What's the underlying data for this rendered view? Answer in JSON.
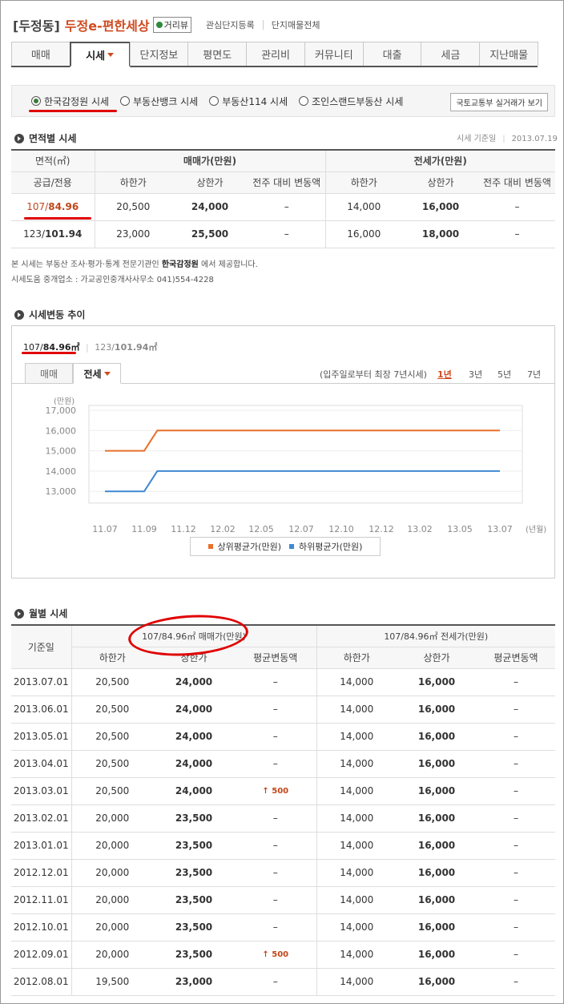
{
  "header": {
    "region": "[두정동]",
    "complex": "두정e-편한세상",
    "roadview": "거리뷰",
    "links": [
      "관심단지등록",
      "단지매물전체"
    ]
  },
  "tabs": [
    {
      "label": "매매"
    },
    {
      "label": "시세",
      "active": true
    },
    {
      "label": "단지정보"
    },
    {
      "label": "평면도"
    },
    {
      "label": "관리비"
    },
    {
      "label": "커뮤니티"
    },
    {
      "label": "대출"
    },
    {
      "label": "세금"
    },
    {
      "label": "지난매물"
    }
  ],
  "sources": [
    "한국감정원 시세",
    "부동산뱅크 시세",
    "부동산114 시세",
    "조인스랜드부동산 시세"
  ],
  "molit_button": "국토교통부 실거래가 보기",
  "area_section": {
    "title": "면적별 시세",
    "ref_label": "시세 기준일",
    "ref_date": "2013.07.19",
    "group_area": "면적(㎡)",
    "group_sale": "매매가(만원)",
    "group_jeonse": "전세가(만원)",
    "sub_area": "공급/전용",
    "sub_low": "하한가",
    "sub_high": "상한가",
    "sub_change": "전주 대비 변동액",
    "rows": [
      {
        "area": "107/",
        "excl": "84.96",
        "s_low": "20,500",
        "s_high": "24,000",
        "s_chg": "–",
        "j_low": "14,000",
        "j_high": "16,000",
        "j_chg": "–"
      },
      {
        "area": "123/",
        "excl": "101.94",
        "s_low": "23,000",
        "s_high": "25,500",
        "s_chg": "–",
        "j_low": "16,000",
        "j_high": "18,000",
        "j_chg": "–"
      }
    ]
  },
  "notice": {
    "pre": "본 시세는 부동산 조사·평가·통계 전문기관인 ",
    "org": "한국감정원",
    "post": " 에서 제공합니다.",
    "agent": "시세도움 중개업소 : 가교공인중개사사무소 041)554-4228"
  },
  "trend": {
    "title": "시세변동 추이",
    "area_on_a": "107/",
    "area_on_b": "84.96㎡",
    "area_off_a": "123/",
    "area_off_b": "101.94㎡",
    "tab_sale": "매매",
    "tab_all": "전세",
    "period_note": "(입주일로부터 최장 7년시세)",
    "periods": [
      "1년",
      "3년",
      "5년",
      "7년"
    ]
  },
  "chart_data": {
    "type": "line",
    "ylabel": "(만원)",
    "xlabel": "(년월)",
    "x_ticks": [
      "11.07",
      "11.09",
      "11.12",
      "12.02",
      "12.05",
      "12.07",
      "12.10",
      "12.12",
      "13.02",
      "13.05",
      "13.07"
    ],
    "y_ticks": [
      "17,000",
      "16,000",
      "15,000",
      "14,000",
      "13,000"
    ],
    "ylim": [
      12500,
      17000
    ],
    "series": [
      {
        "name": "상위평균가(만원)",
        "color": "#e8702a",
        "points": [
          [
            "11.07",
            15000
          ],
          [
            "11.09",
            15000
          ],
          [
            "11.10",
            16000
          ],
          [
            "13.07",
            16000
          ]
        ]
      },
      {
        "name": "하위평균가(만원)",
        "color": "#3f89d0",
        "points": [
          [
            "11.07",
            13000
          ],
          [
            "11.09",
            13000
          ],
          [
            "11.10",
            14000
          ],
          [
            "13.07",
            14000
          ]
        ]
      }
    ]
  },
  "monthly": {
    "title": "월별 시세",
    "col_date": "기준일",
    "group_sale": "107/84.96㎡ 매매가(만원)",
    "group_jeonse": "107/84.96㎡ 전세가(만원)",
    "sub_low": "하한가",
    "sub_high": "상한가",
    "sub_avg": "평균변동액",
    "rows": [
      {
        "date": "2013.07.01",
        "s_low": "20,500",
        "s_high": "24,000",
        "s_avg": "–",
        "j_low": "14,000",
        "j_high": "16,000",
        "j_avg": "–"
      },
      {
        "date": "2013.06.01",
        "s_low": "20,500",
        "s_high": "24,000",
        "s_avg": "–",
        "j_low": "14,000",
        "j_high": "16,000",
        "j_avg": "–"
      },
      {
        "date": "2013.05.01",
        "s_low": "20,500",
        "s_high": "24,000",
        "s_avg": "–",
        "j_low": "14,000",
        "j_high": "16,000",
        "j_avg": "–"
      },
      {
        "date": "2013.04.01",
        "s_low": "20,500",
        "s_high": "24,000",
        "s_avg": "–",
        "j_low": "14,000",
        "j_high": "16,000",
        "j_avg": "–"
      },
      {
        "date": "2013.03.01",
        "s_low": "20,500",
        "s_high": "24,000",
        "s_avg": "↑ 500",
        "j_low": "14,000",
        "j_high": "16,000",
        "j_avg": "–"
      },
      {
        "date": "2013.02.01",
        "s_low": "20,000",
        "s_high": "23,500",
        "s_avg": "–",
        "j_low": "14,000",
        "j_high": "16,000",
        "j_avg": "–"
      },
      {
        "date": "2013.01.01",
        "s_low": "20,000",
        "s_high": "23,500",
        "s_avg": "–",
        "j_low": "14,000",
        "j_high": "16,000",
        "j_avg": "–"
      },
      {
        "date": "2012.12.01",
        "s_low": "20,000",
        "s_high": "23,500",
        "s_avg": "–",
        "j_low": "14,000",
        "j_high": "16,000",
        "j_avg": "–"
      },
      {
        "date": "2012.11.01",
        "s_low": "20,000",
        "s_high": "23,500",
        "s_avg": "–",
        "j_low": "14,000",
        "j_high": "16,000",
        "j_avg": "–"
      },
      {
        "date": "2012.10.01",
        "s_low": "20,000",
        "s_high": "23,500",
        "s_avg": "–",
        "j_low": "14,000",
        "j_high": "16,000",
        "j_avg": "–"
      },
      {
        "date": "2012.09.01",
        "s_low": "20,000",
        "s_high": "23,500",
        "s_avg": "↑ 500",
        "j_low": "14,000",
        "j_high": "16,000",
        "j_avg": "–"
      },
      {
        "date": "2012.08.01",
        "s_low": "19,500",
        "s_high": "23,000",
        "s_avg": "–",
        "j_low": "14,000",
        "j_high": "16,000",
        "j_avg": "–"
      }
    ]
  },
  "colors": {
    "accent": "#d0491f",
    "annotation": "#e00000",
    "up": "#c0461a"
  }
}
